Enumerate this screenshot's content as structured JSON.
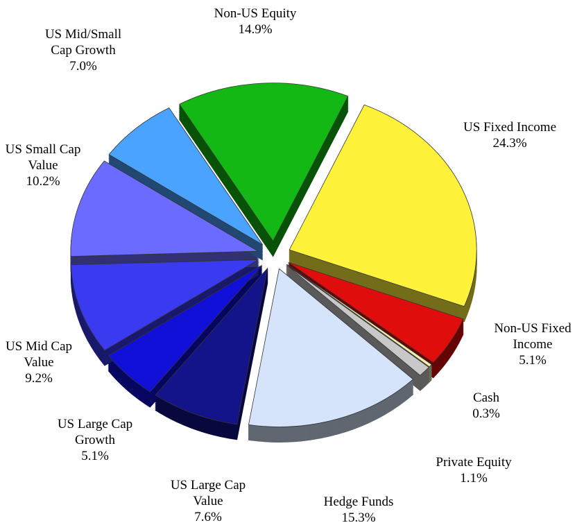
{
  "chart_data": {
    "type": "pie",
    "categories": [
      "Non-US Equity",
      "US Fixed Income",
      "Non-US Fixed Income",
      "Cash",
      "Private Equity",
      "Hedge Funds",
      "US Large Cap Value",
      "US Large Cap Growth",
      "US Mid Cap Value",
      "US Small Cap Value",
      "US Mid/Small Cap Growth"
    ],
    "values": [
      14.9,
      24.3,
      5.1,
      0.3,
      1.1,
      15.3,
      7.6,
      5.1,
      9.2,
      10.2,
      7.0
    ],
    "value_labels": [
      "14.9%",
      "24.3%",
      "5.1%",
      "0.3%",
      "1.1%",
      "15.3%",
      "7.6%",
      "5.1%",
      "9.2%",
      "10.2%",
      "7.0%"
    ],
    "colors": [
      "#14b814",
      "#fff23a",
      "#e00d0d",
      "#f3eeb0",
      "#c8c8c8",
      "#d6e4fb",
      "#14148a",
      "#1010d8",
      "#3a3af0",
      "#6b6bff",
      "#4aa3ff"
    ]
  }
}
